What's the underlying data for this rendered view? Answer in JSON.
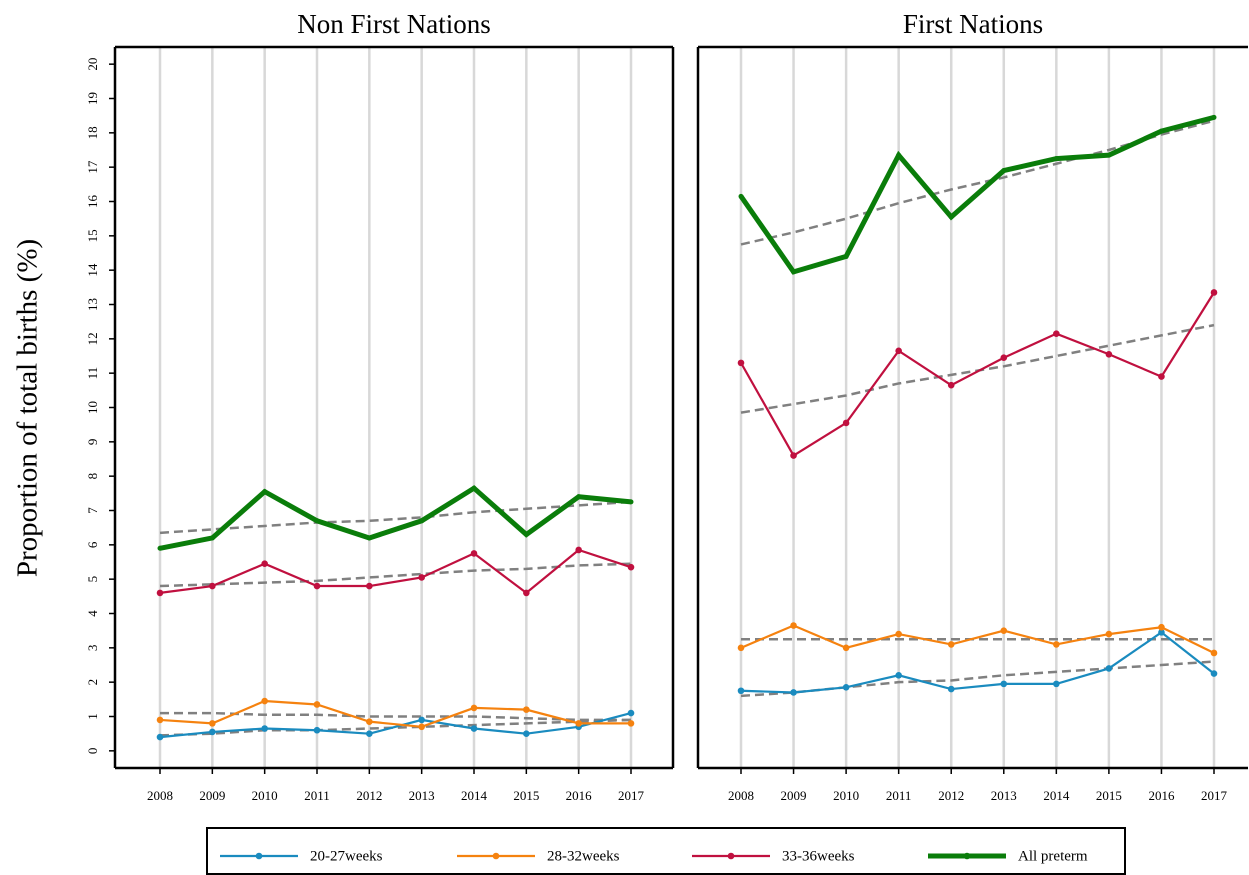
{
  "legend": [
    {
      "name": "20-27weeks",
      "color": "#1a8bbf"
    },
    {
      "name": "28-32weeks",
      "color": "#f5820f"
    },
    {
      "name": "33-36weeks",
      "color": "#c0103f"
    },
    {
      "name": "All preterm",
      "color": "#0a7d0a"
    }
  ],
  "trend_color": "#808080",
  "chart_data": [
    {
      "type": "line",
      "title": "Non First Nations",
      "ylabel": "Proportion of total births (%)",
      "categories": [
        "2008",
        "2009",
        "2010",
        "2011",
        "2012",
        "2013",
        "2014",
        "2015",
        "2016",
        "2017"
      ],
      "ylim": [
        -0.5,
        20.5
      ],
      "yticks": [
        0,
        1,
        2,
        3,
        4,
        5,
        6,
        7,
        8,
        9,
        10,
        11,
        12,
        13,
        14,
        15,
        16,
        17,
        18,
        19,
        20
      ],
      "series": [
        {
          "values": [
            0.4,
            0.55,
            0.65,
            0.6,
            0.5,
            0.9,
            0.65,
            0.5,
            0.7,
            1.1
          ],
          "trend": [
            0.45,
            0.5,
            0.6,
            0.6,
            0.65,
            0.7,
            0.75,
            0.8,
            0.85,
            0.9
          ]
        },
        {
          "values": [
            0.9,
            0.8,
            1.45,
            1.35,
            0.85,
            0.7,
            1.25,
            1.2,
            0.8,
            0.8
          ],
          "trend": [
            1.1,
            1.1,
            1.05,
            1.05,
            1.0,
            1.0,
            1.0,
            0.95,
            0.9,
            0.9
          ]
        },
        {
          "values": [
            4.6,
            4.8,
            5.45,
            4.8,
            4.8,
            5.05,
            5.75,
            4.6,
            5.85,
            5.35
          ],
          "trend": [
            4.8,
            4.85,
            4.9,
            4.95,
            5.05,
            5.15,
            5.25,
            5.3,
            5.4,
            5.45
          ]
        },
        {
          "values": [
            5.9,
            6.2,
            7.55,
            6.7,
            6.2,
            6.7,
            7.65,
            6.3,
            7.4,
            7.25
          ],
          "trend": [
            6.35,
            6.45,
            6.55,
            6.65,
            6.7,
            6.8,
            6.95,
            7.05,
            7.15,
            7.25
          ]
        }
      ]
    },
    {
      "type": "line",
      "title": "First Nations",
      "categories": [
        "2008",
        "2009",
        "2010",
        "2011",
        "2012",
        "2013",
        "2014",
        "2015",
        "2016",
        "2017"
      ],
      "ylim": [
        -0.5,
        20.5
      ],
      "series": [
        {
          "values": [
            1.75,
            1.7,
            1.85,
            2.2,
            1.8,
            1.95,
            1.95,
            2.4,
            3.45,
            2.25
          ],
          "trend": [
            1.6,
            1.7,
            1.85,
            2.0,
            2.05,
            2.2,
            2.3,
            2.4,
            2.5,
            2.6
          ]
        },
        {
          "values": [
            3.0,
            3.65,
            3.0,
            3.4,
            3.1,
            3.5,
            3.1,
            3.4,
            3.6,
            2.85
          ],
          "trend": [
            3.25,
            3.25,
            3.25,
            3.25,
            3.25,
            3.25,
            3.25,
            3.25,
            3.25,
            3.25
          ]
        },
        {
          "values": [
            11.3,
            8.6,
            9.55,
            11.65,
            10.65,
            11.45,
            12.15,
            11.55,
            10.9,
            13.35
          ],
          "trend": [
            9.85,
            10.1,
            10.35,
            10.7,
            10.95,
            11.2,
            11.5,
            11.8,
            12.1,
            12.4
          ]
        },
        {
          "values": [
            16.15,
            13.95,
            14.4,
            17.35,
            15.55,
            16.9,
            17.25,
            17.35,
            18.05,
            18.45
          ],
          "trend": [
            14.75,
            15.1,
            15.5,
            15.95,
            16.35,
            16.7,
            17.1,
            17.5,
            17.95,
            18.35
          ]
        }
      ]
    }
  ]
}
